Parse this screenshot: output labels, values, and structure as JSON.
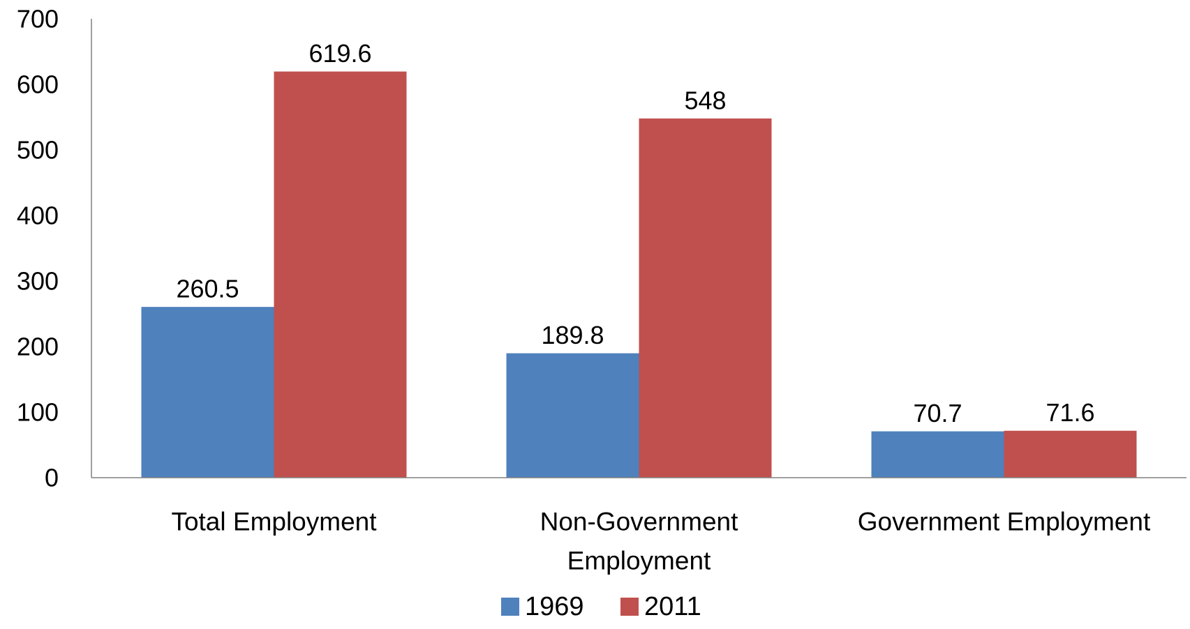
{
  "chart_data": {
    "type": "bar",
    "title": "",
    "xlabel": "",
    "ylabel": "",
    "categories": [
      "Total Employment",
      "Non-Government Employment",
      "Government Employment"
    ],
    "category_lines": [
      [
        "Total Employment"
      ],
      [
        "Non-Government",
        "Employment"
      ],
      [
        "Government Employment"
      ]
    ],
    "series": [
      {
        "name": "1969",
        "values": [
          260.5,
          189.8,
          70.7
        ],
        "labels": [
          "260.5",
          "189.8",
          "70.7"
        ],
        "color": "#4f81bd"
      },
      {
        "name": "2011",
        "values": [
          619.6,
          548,
          71.6
        ],
        "labels": [
          "619.6",
          "548",
          "71.6"
        ],
        "color": "#c0504d"
      }
    ],
    "ylim": [
      0,
      700
    ],
    "yticks": [
      0,
      100,
      200,
      300,
      400,
      500,
      600,
      700
    ],
    "grid": false,
    "legend_position": "bottom",
    "axis_color": "#808080"
  }
}
